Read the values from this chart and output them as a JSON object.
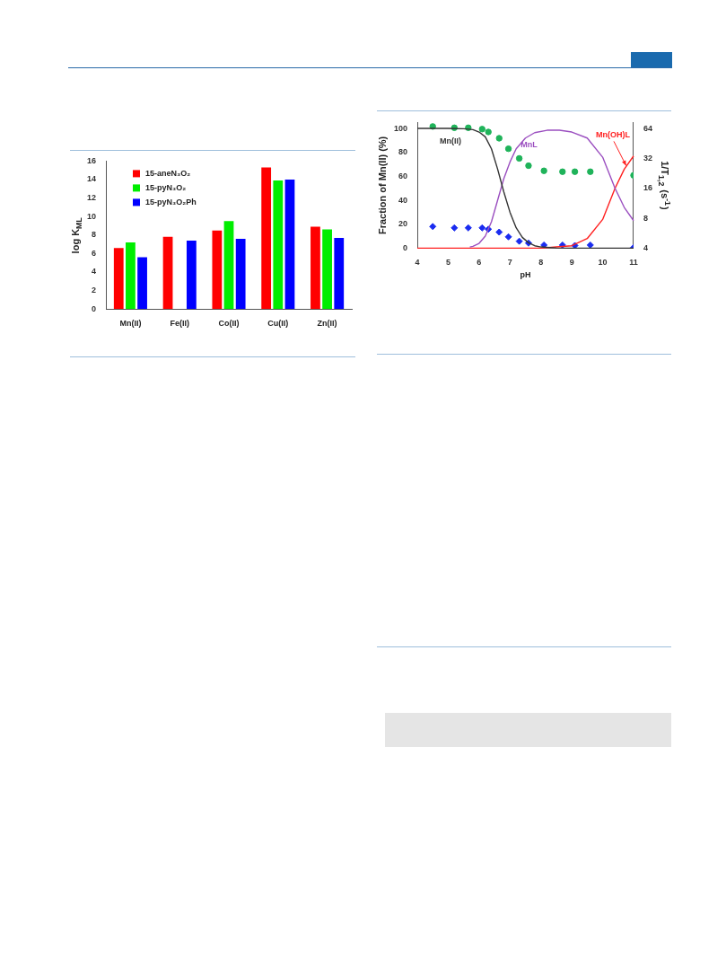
{
  "chart_data": [
    {
      "type": "bar",
      "ylabel": "log K$_{ML}$",
      "categories": [
        "Mn(II)",
        "Fe(II)",
        "Co(II)",
        "Cu(II)",
        "Zn(II)"
      ],
      "series": [
        {
          "name": "15-aneN₃O₂",
          "color": "#ff0000",
          "values": [
            6.6,
            7.8,
            8.5,
            15.3,
            8.9
          ]
        },
        {
          "name": "15-pyN₃O₂",
          "color": "#00ee00",
          "values": [
            7.2,
            null,
            9.5,
            13.9,
            8.6
          ]
        },
        {
          "name": "15-pyN₃O₂Ph",
          "color": "#0000ff",
          "values": [
            5.6,
            7.4,
            7.6,
            14.0,
            7.7
          ]
        }
      ],
      "ylim": [
        0,
        16
      ],
      "yticks": [
        0,
        2,
        4,
        6,
        8,
        10,
        12,
        14,
        16
      ],
      "legend": "top left"
    },
    {
      "type": "line",
      "xlabel": "pH",
      "ylabel": "Fraction of Mn(II) (%)",
      "y2label": "1/T$_{1,2}$ (s$^{-1}$)",
      "log": "y2",
      "series": [
        {
          "name": "Mn(II)",
          "type": "line",
          "color": "#333333",
          "x": [
            4,
            5,
            5.5,
            5.8,
            6,
            6.2,
            6.4,
            6.6,
            6.8,
            7,
            7.2,
            7.4,
            7.6,
            7.8,
            8,
            8.5,
            9,
            11
          ],
          "values": [
            100,
            100,
            99.8,
            99,
            97,
            93,
            83,
            66,
            47,
            30,
            17,
            9,
            4.5,
            2,
            1,
            0.2,
            0,
            0
          ]
        },
        {
          "name": "MnL",
          "type": "line",
          "color": "#9b4fc0",
          "x": [
            5.7,
            5.8,
            6,
            6.2,
            6.4,
            6.6,
            6.8,
            7,
            7.2,
            7.5,
            7.8,
            8.2,
            8.6,
            9,
            9.5,
            10,
            10.4,
            10.7,
            11
          ],
          "values": [
            1,
            1.5,
            4,
            10,
            22,
            40,
            58,
            72,
            83,
            92,
            96.5,
            98.5,
            98.5,
            97,
            92,
            76,
            50,
            34,
            23
          ]
        },
        {
          "name": "Mn(OH)L",
          "type": "line",
          "color": "#ff2020",
          "x": [
            4,
            8,
            8.5,
            9,
            9.5,
            10,
            10.4,
            10.7,
            11
          ],
          "values": [
            0,
            0,
            1,
            2,
            8,
            24,
            50,
            66,
            77
          ]
        },
        {
          "type": "scatter",
          "axis": "y2",
          "marker": "circle",
          "color": "#1fb35a",
          "x": [
            4.5,
            5.2,
            5.65,
            6.1,
            6.3,
            6.65,
            6.95,
            7.3,
            7.6,
            8.1,
            8.7,
            9.1,
            9.6,
            11
          ],
          "values": [
            67,
            65,
            65,
            63,
            59,
            51,
            40,
            32,
            27,
            24,
            23.5,
            23.5,
            23.5,
            21.6
          ]
        },
        {
          "type": "scatter",
          "axis": "y2",
          "marker": "diamond",
          "color": "#1a2cf0",
          "x": [
            4.5,
            5.2,
            5.65,
            6.1,
            6.3,
            6.65,
            6.95,
            7.3,
            7.6,
            8.1,
            8.7,
            9.1,
            9.6,
            11
          ],
          "values": [
            6.6,
            6.4,
            6.4,
            6.4,
            6.2,
            5.8,
            5.2,
            4.7,
            4.5,
            4.3,
            4.3,
            4.25,
            4.3,
            4.05
          ]
        }
      ],
      "xlim": [
        4,
        11
      ],
      "xticks": [
        4,
        5,
        6,
        7,
        8,
        9,
        10,
        11
      ],
      "ylim": [
        0,
        105
      ],
      "yticks": [
        0,
        20,
        40,
        60,
        80,
        100
      ],
      "y2lim": [
        4,
        73.5
      ],
      "y2ticks": [
        4,
        8,
        16,
        32,
        64
      ]
    }
  ]
}
